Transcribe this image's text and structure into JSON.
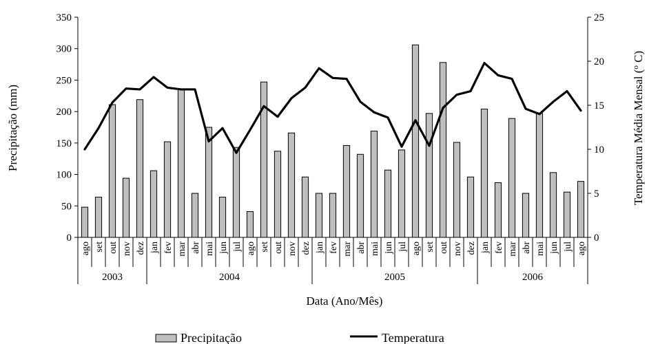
{
  "chart_data": {
    "type": "bar",
    "xlabel": "Data (Ano/Mês)",
    "ylabel_left": "Precipitação (mm)",
    "ylabel_right": "Temperatura Média Mensal",
    "ylabel_right_unit": "(",
    "ylabel_right_degree": "o",
    "ylabel_right_unit_end": " C)",
    "ylim_left": [
      0,
      350
    ],
    "yticks_left": [
      0,
      50,
      100,
      150,
      200,
      250,
      300,
      350
    ],
    "ylim_right": [
      0,
      25
    ],
    "yticks_right": [
      0,
      5,
      10,
      15,
      20,
      25
    ],
    "grid": false,
    "legend_position": "bottom",
    "months": [
      "ago",
      "set",
      "out",
      "nov",
      "dez",
      "jan",
      "fev",
      "mar",
      "abr",
      "mai",
      "jun",
      "jul",
      "ago",
      "set",
      "out",
      "nov",
      "dez",
      "jan",
      "fev",
      "mar",
      "abr",
      "mai",
      "jun",
      "jul",
      "ago",
      "set",
      "out",
      "nov",
      "dez",
      "jan",
      "fev",
      "mar",
      "abr",
      "mai",
      "jun",
      "jul",
      "ago"
    ],
    "years": [
      {
        "label": "2003",
        "start": 0,
        "count": 5
      },
      {
        "label": "2004",
        "start": 5,
        "count": 12
      },
      {
        "label": "2005",
        "start": 17,
        "count": 12
      },
      {
        "label": "2006",
        "start": 29,
        "count": 8
      }
    ],
    "series": [
      {
        "name": "Precipitação",
        "type": "bar",
        "axis": "left",
        "color": "#bfbfbf",
        "values": [
          48,
          64,
          211,
          94,
          219,
          106,
          152,
          236,
          70,
          175,
          64,
          143,
          41,
          247,
          137,
          166,
          96,
          70,
          70,
          146,
          132,
          169,
          107,
          139,
          306,
          197,
          278,
          151,
          96,
          204,
          87,
          189,
          70,
          197,
          103,
          72,
          89
        ]
      },
      {
        "name": "Temperatura",
        "type": "line",
        "axis": "right",
        "color": "#000000",
        "values": [
          10.0,
          12.4,
          15.3,
          16.9,
          16.8,
          18.2,
          17.0,
          16.8,
          16.8,
          10.9,
          12.4,
          9.6,
          12.2,
          14.9,
          13.7,
          15.8,
          17.0,
          19.2,
          18.1,
          18.0,
          15.4,
          14.2,
          13.6,
          10.3,
          13.3,
          10.4,
          14.7,
          16.2,
          16.6,
          19.8,
          18.4,
          18.0,
          14.6,
          14.0,
          15.4,
          16.6,
          14.4
        ]
      }
    ]
  }
}
